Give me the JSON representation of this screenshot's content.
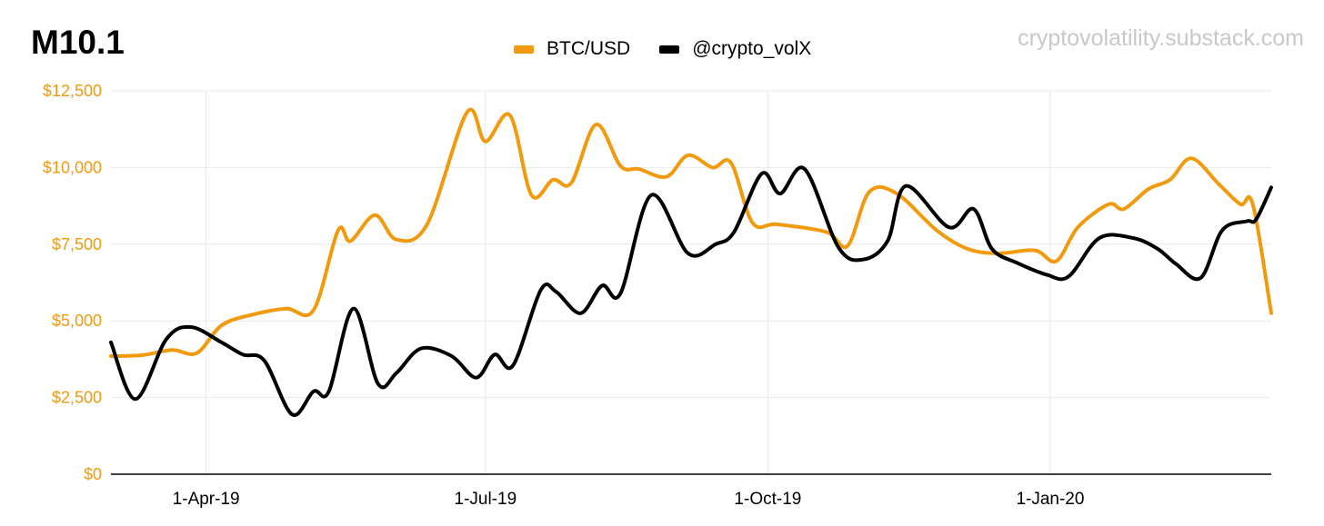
{
  "title": "M10.1",
  "watermark": "cryptovolatility.substack.com",
  "chart_data": {
    "type": "line",
    "ylim": [
      0,
      12500
    ],
    "y_ticks": [
      {
        "value": 0,
        "label": "$0"
      },
      {
        "value": 2500,
        "label": "$2,500"
      },
      {
        "value": 5000,
        "label": "$5,000"
      },
      {
        "value": 7500,
        "label": "$7,500"
      },
      {
        "value": 10000,
        "label": "$10,000"
      },
      {
        "value": 12500,
        "label": "$12,500"
      }
    ],
    "xlim": [
      "2019-03-01",
      "2020-03-13"
    ],
    "x_ticks": [
      {
        "date": "2019-04-01",
        "label": "1-Apr-19"
      },
      {
        "date": "2019-07-01",
        "label": "1-Jul-19"
      },
      {
        "date": "2019-10-01",
        "label": "1-Oct-19"
      },
      {
        "date": "2020-01-01",
        "label": "1-Jan-20"
      }
    ],
    "grid": true,
    "legend_position": "top-center",
    "series": [
      {
        "name": "BTC/USD",
        "color": "#f29a0d",
        "points": [
          [
            "2019-03-01",
            3850
          ],
          [
            "2019-03-11",
            3880
          ],
          [
            "2019-03-21",
            4050
          ],
          [
            "2019-03-29",
            3950
          ],
          [
            "2019-04-06",
            4850
          ],
          [
            "2019-04-16",
            5200
          ],
          [
            "2019-04-27",
            5400
          ],
          [
            "2019-05-06",
            5350
          ],
          [
            "2019-05-14",
            7950
          ],
          [
            "2019-05-18",
            7600
          ],
          [
            "2019-05-26",
            8450
          ],
          [
            "2019-06-02",
            7650
          ],
          [
            "2019-06-12",
            8150
          ],
          [
            "2019-06-25",
            11800
          ],
          [
            "2019-07-01",
            10850
          ],
          [
            "2019-07-09",
            11700
          ],
          [
            "2019-07-16",
            9100
          ],
          [
            "2019-07-23",
            9600
          ],
          [
            "2019-07-29",
            9500
          ],
          [
            "2019-08-06",
            11400
          ],
          [
            "2019-08-14",
            10050
          ],
          [
            "2019-08-20",
            9950
          ],
          [
            "2019-08-29",
            9700
          ],
          [
            "2019-09-05",
            10400
          ],
          [
            "2019-09-13",
            10000
          ],
          [
            "2019-09-19",
            10150
          ],
          [
            "2019-09-26",
            8200
          ],
          [
            "2019-10-04",
            8150
          ],
          [
            "2019-10-20",
            7900
          ],
          [
            "2019-10-27",
            7450
          ],
          [
            "2019-11-03",
            9200
          ],
          [
            "2019-11-12",
            9150
          ],
          [
            "2019-11-25",
            7950
          ],
          [
            "2019-12-05",
            7350
          ],
          [
            "2019-12-15",
            7200
          ],
          [
            "2019-12-27",
            7300
          ],
          [
            "2020-01-03",
            6950
          ],
          [
            "2020-01-10",
            8050
          ],
          [
            "2020-01-20",
            8800
          ],
          [
            "2020-01-25",
            8650
          ],
          [
            "2020-02-02",
            9300
          ],
          [
            "2020-02-09",
            9600
          ],
          [
            "2020-02-16",
            10300
          ],
          [
            "2020-02-25",
            9450
          ],
          [
            "2020-03-03",
            8800
          ],
          [
            "2020-03-07",
            8800
          ],
          [
            "2020-03-13",
            5250
          ]
        ]
      },
      {
        "name": "@crypto_volX",
        "color": "#000000",
        "points": [
          [
            "2019-03-01",
            4300
          ],
          [
            "2019-03-09",
            2450
          ],
          [
            "2019-03-19",
            4400
          ],
          [
            "2019-03-27",
            4800
          ],
          [
            "2019-04-06",
            4300
          ],
          [
            "2019-04-13",
            3900
          ],
          [
            "2019-04-20",
            3700
          ],
          [
            "2019-04-29",
            1950
          ],
          [
            "2019-05-06",
            2700
          ],
          [
            "2019-05-11",
            2700
          ],
          [
            "2019-05-19",
            5400
          ],
          [
            "2019-05-27",
            2950
          ],
          [
            "2019-06-02",
            3300
          ],
          [
            "2019-06-10",
            4100
          ],
          [
            "2019-06-20",
            3850
          ],
          [
            "2019-06-28",
            3150
          ],
          [
            "2019-07-04",
            3900
          ],
          [
            "2019-07-10",
            3550
          ],
          [
            "2019-07-19",
            6000
          ],
          [
            "2019-07-24",
            5950
          ],
          [
            "2019-08-01",
            5250
          ],
          [
            "2019-08-08",
            6150
          ],
          [
            "2019-08-14",
            5900
          ],
          [
            "2019-08-24",
            9100
          ],
          [
            "2019-09-05",
            7200
          ],
          [
            "2019-09-14",
            7500
          ],
          [
            "2019-09-20",
            7900
          ],
          [
            "2019-09-29",
            9800
          ],
          [
            "2019-10-05",
            9150
          ],
          [
            "2019-10-13",
            9950
          ],
          [
            "2019-10-24",
            7400
          ],
          [
            "2019-11-01",
            7000
          ],
          [
            "2019-11-09",
            7600
          ],
          [
            "2019-11-15",
            9400
          ],
          [
            "2019-11-29",
            8050
          ],
          [
            "2019-12-07",
            8650
          ],
          [
            "2019-12-13",
            7350
          ],
          [
            "2019-12-21",
            6900
          ],
          [
            "2019-12-31",
            6500
          ],
          [
            "2020-01-07",
            6450
          ],
          [
            "2020-01-17",
            7700
          ],
          [
            "2020-01-28",
            7700
          ],
          [
            "2020-02-05",
            7350
          ],
          [
            "2020-02-11",
            6850
          ],
          [
            "2020-02-19",
            6400
          ],
          [
            "2020-02-26",
            7950
          ],
          [
            "2020-03-05",
            8250
          ],
          [
            "2020-03-08",
            8300
          ],
          [
            "2020-03-13",
            9350
          ]
        ]
      }
    ]
  }
}
